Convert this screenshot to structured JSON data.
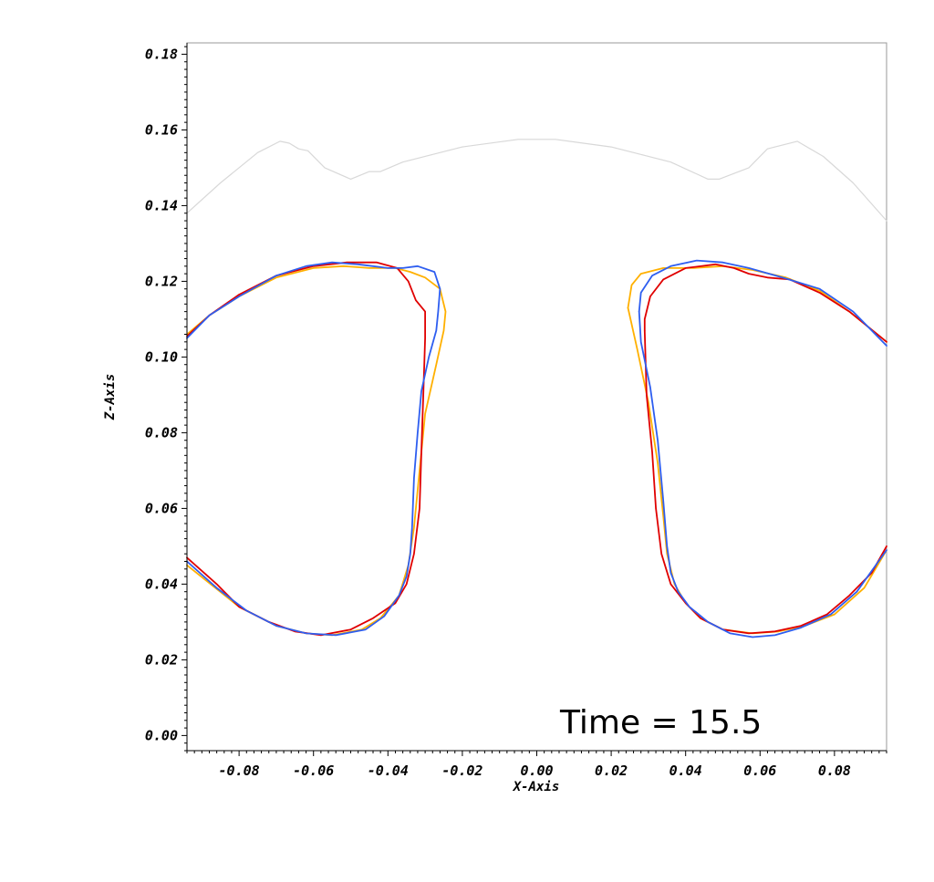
{
  "chart_data": {
    "type": "line",
    "xlabel": "X-Axis",
    "ylabel": "Z-Axis",
    "xlim": [
      -0.094,
      0.094
    ],
    "ylim": [
      -0.004,
      0.183
    ],
    "x_ticks": [
      -0.08,
      -0.06,
      -0.04,
      -0.02,
      0.0,
      0.02,
      0.04,
      0.06,
      0.08
    ],
    "x_tick_labels": [
      "-0.08",
      "-0.06",
      "-0.04",
      "-0.02",
      "0.00",
      "0.02",
      "0.04",
      "0.06",
      "0.08"
    ],
    "y_ticks": [
      0.0,
      0.02,
      0.04,
      0.06,
      0.08,
      0.1,
      0.12,
      0.14,
      0.16,
      0.18
    ],
    "y_tick_labels": [
      "0.00",
      "0.02",
      "0.04",
      "0.06",
      "0.08",
      "0.10",
      "0.12",
      "0.14",
      "0.16",
      "0.18"
    ],
    "annotation": "Time = 15.5",
    "grid": false,
    "series": [
      {
        "color": "#d8d8d8",
        "segments": [
          [
            [
              -0.094,
              0.138
            ],
            [
              -0.085,
              0.146
            ],
            [
              -0.075,
              0.154
            ],
            [
              -0.069,
              0.157
            ],
            [
              -0.0665,
              0.1565
            ],
            [
              -0.064,
              0.155
            ],
            [
              -0.0615,
              0.1545
            ],
            [
              -0.057,
              0.15
            ],
            [
              -0.05,
              0.147
            ],
            [
              -0.045,
              0.149
            ],
            [
              -0.042,
              0.149
            ],
            [
              -0.036,
              0.1515
            ],
            [
              -0.02,
              0.1555
            ],
            [
              -0.005,
              0.1575
            ],
            [
              0.005,
              0.1575
            ],
            [
              0.02,
              0.1555
            ],
            [
              0.036,
              0.1515
            ],
            [
              0.046,
              0.147
            ],
            [
              0.049,
              0.147
            ],
            [
              0.057,
              0.15
            ],
            [
              0.062,
              0.155
            ],
            [
              0.07,
              0.157
            ],
            [
              0.077,
              0.153
            ],
            [
              0.085,
              0.146
            ],
            [
              0.094,
              0.136
            ]
          ]
        ]
      },
      {
        "color": "#ffb000",
        "segments": [
          [
            [
              -0.094,
              0.106
            ],
            [
              -0.088,
              0.111
            ],
            [
              -0.08,
              0.116
            ],
            [
              -0.07,
              0.121
            ],
            [
              -0.06,
              0.1235
            ],
            [
              -0.052,
              0.124
            ],
            [
              -0.045,
              0.1235
            ],
            [
              -0.038,
              0.1235
            ],
            [
              -0.034,
              0.1225
            ],
            [
              -0.03,
              0.121
            ],
            [
              -0.026,
              0.118
            ],
            [
              -0.0245,
              0.112
            ],
            [
              -0.025,
              0.107
            ],
            [
              -0.027,
              0.098
            ],
            [
              -0.03,
              0.085
            ],
            [
              -0.0315,
              0.07
            ],
            [
              -0.033,
              0.055
            ],
            [
              -0.0345,
              0.045
            ],
            [
              -0.037,
              0.037
            ],
            [
              -0.042,
              0.031
            ],
            [
              -0.047,
              0.028
            ],
            [
              -0.055,
              0.0265
            ],
            [
              -0.062,
              0.027
            ],
            [
              -0.07,
              0.029
            ],
            [
              -0.08,
              0.034
            ],
            [
              -0.094,
              0.045
            ]
          ],
          [
            [
              0.0245,
              0.113
            ],
            [
              0.0255,
              0.119
            ],
            [
              0.028,
              0.122
            ],
            [
              0.034,
              0.1235
            ],
            [
              0.042,
              0.1235
            ],
            [
              0.05,
              0.124
            ],
            [
              0.058,
              0.123
            ],
            [
              0.067,
              0.121
            ],
            [
              0.076,
              0.1175
            ],
            [
              0.084,
              0.112
            ],
            [
              0.094,
              0.104
            ]
          ],
          [
            [
              0.0245,
              0.113
            ],
            [
              0.027,
              0.102
            ],
            [
              0.03,
              0.088
            ],
            [
              0.0325,
              0.072
            ],
            [
              0.034,
              0.058
            ],
            [
              0.035,
              0.048
            ],
            [
              0.037,
              0.04
            ],
            [
              0.04,
              0.035
            ],
            [
              0.044,
              0.031
            ],
            [
              0.05,
              0.028
            ],
            [
              0.058,
              0.027
            ],
            [
              0.065,
              0.0275
            ],
            [
              0.072,
              0.029
            ],
            [
              0.08,
              0.032
            ],
            [
              0.088,
              0.039
            ],
            [
              0.094,
              0.049
            ]
          ]
        ]
      },
      {
        "color": "#e00000",
        "segments": [
          [
            [
              -0.094,
              0.1055
            ],
            [
              -0.088,
              0.111
            ],
            [
              -0.08,
              0.1165
            ],
            [
              -0.07,
              0.1215
            ],
            [
              -0.06,
              0.124
            ],
            [
              -0.051,
              0.125
            ],
            [
              -0.043,
              0.125
            ],
            [
              -0.0375,
              0.1235
            ],
            [
              -0.0345,
              0.12
            ],
            [
              -0.0325,
              0.115
            ],
            [
              -0.03,
              0.112
            ],
            [
              -0.03,
              0.105
            ],
            [
              -0.0305,
              0.09
            ],
            [
              -0.031,
              0.075
            ],
            [
              -0.0315,
              0.06
            ],
            [
              -0.033,
              0.048
            ],
            [
              -0.035,
              0.04
            ],
            [
              -0.038,
              0.035
            ],
            [
              -0.044,
              0.031
            ],
            [
              -0.05,
              0.028
            ],
            [
              -0.058,
              0.0265
            ],
            [
              -0.065,
              0.0275
            ],
            [
              -0.072,
              0.03
            ],
            [
              -0.08,
              0.034
            ],
            [
              -0.086,
              0.04
            ],
            [
              -0.094,
              0.047
            ]
          ],
          [
            [
              0.029,
              0.107
            ],
            [
              0.029,
              0.11
            ],
            [
              0.0305,
              0.116
            ],
            [
              0.034,
              0.1205
            ],
            [
              0.04,
              0.1235
            ],
            [
              0.048,
              0.1245
            ],
            [
              0.053,
              0.1235
            ],
            [
              0.057,
              0.122
            ],
            [
              0.062,
              0.121
            ],
            [
              0.068,
              0.1205
            ],
            [
              0.076,
              0.117
            ],
            [
              0.084,
              0.112
            ],
            [
              0.094,
              0.104
            ]
          ],
          [
            [
              0.029,
              0.107
            ],
            [
              0.0295,
              0.09
            ],
            [
              0.031,
              0.075
            ],
            [
              0.032,
              0.06
            ],
            [
              0.0335,
              0.048
            ],
            [
              0.036,
              0.04
            ],
            [
              0.04,
              0.035
            ],
            [
              0.044,
              0.031
            ],
            [
              0.05,
              0.028
            ],
            [
              0.057,
              0.027
            ],
            [
              0.064,
              0.0275
            ],
            [
              0.071,
              0.029
            ],
            [
              0.078,
              0.032
            ],
            [
              0.084,
              0.037
            ],
            [
              0.09,
              0.043
            ],
            [
              0.094,
              0.05
            ]
          ]
        ]
      },
      {
        "color": "#2e5ef0",
        "segments": [
          [
            [
              -0.094,
              0.105
            ],
            [
              -0.088,
              0.111
            ],
            [
              -0.08,
              0.116
            ],
            [
              -0.07,
              0.1215
            ],
            [
              -0.062,
              0.124
            ],
            [
              -0.055,
              0.125
            ],
            [
              -0.048,
              0.1245
            ],
            [
              -0.04,
              0.1235
            ],
            [
              -0.036,
              0.1235
            ],
            [
              -0.032,
              0.124
            ],
            [
              -0.0275,
              0.1225
            ],
            [
              -0.026,
              0.118
            ],
            [
              -0.0265,
              0.112
            ],
            [
              -0.027,
              0.107
            ],
            [
              -0.029,
              0.1
            ],
            [
              -0.031,
              0.091
            ],
            [
              -0.032,
              0.08
            ],
            [
              -0.033,
              0.068
            ],
            [
              -0.0335,
              0.055
            ],
            [
              -0.034,
              0.048
            ],
            [
              -0.035,
              0.042
            ],
            [
              -0.037,
              0.037
            ],
            [
              -0.041,
              0.0315
            ],
            [
              -0.046,
              0.028
            ],
            [
              -0.054,
              0.0265
            ],
            [
              -0.062,
              0.027
            ],
            [
              -0.07,
              0.029
            ],
            [
              -0.078,
              0.033
            ],
            [
              -0.086,
              0.039
            ],
            [
              -0.094,
              0.046
            ]
          ],
          [
            [
              0.0275,
              0.112
            ],
            [
              0.028,
              0.117
            ],
            [
              0.031,
              0.1215
            ],
            [
              0.036,
              0.124
            ],
            [
              0.043,
              0.1255
            ],
            [
              0.05,
              0.125
            ],
            [
              0.057,
              0.1235
            ],
            [
              0.066,
              0.121
            ],
            [
              0.076,
              0.118
            ],
            [
              0.085,
              0.112
            ],
            [
              0.094,
              0.103
            ]
          ],
          [
            [
              0.0275,
              0.112
            ],
            [
              0.028,
              0.104
            ],
            [
              0.0305,
              0.092
            ],
            [
              0.0325,
              0.078
            ],
            [
              0.034,
              0.062
            ],
            [
              0.035,
              0.05
            ],
            [
              0.036,
              0.043
            ],
            [
              0.038,
              0.038
            ],
            [
              0.041,
              0.034
            ],
            [
              0.046,
              0.03
            ],
            [
              0.052,
              0.027
            ],
            [
              0.058,
              0.026
            ],
            [
              0.064,
              0.0265
            ],
            [
              0.071,
              0.0285
            ],
            [
              0.079,
              0.032
            ],
            [
              0.086,
              0.038
            ],
            [
              0.094,
              0.049
            ]
          ]
        ]
      }
    ]
  }
}
